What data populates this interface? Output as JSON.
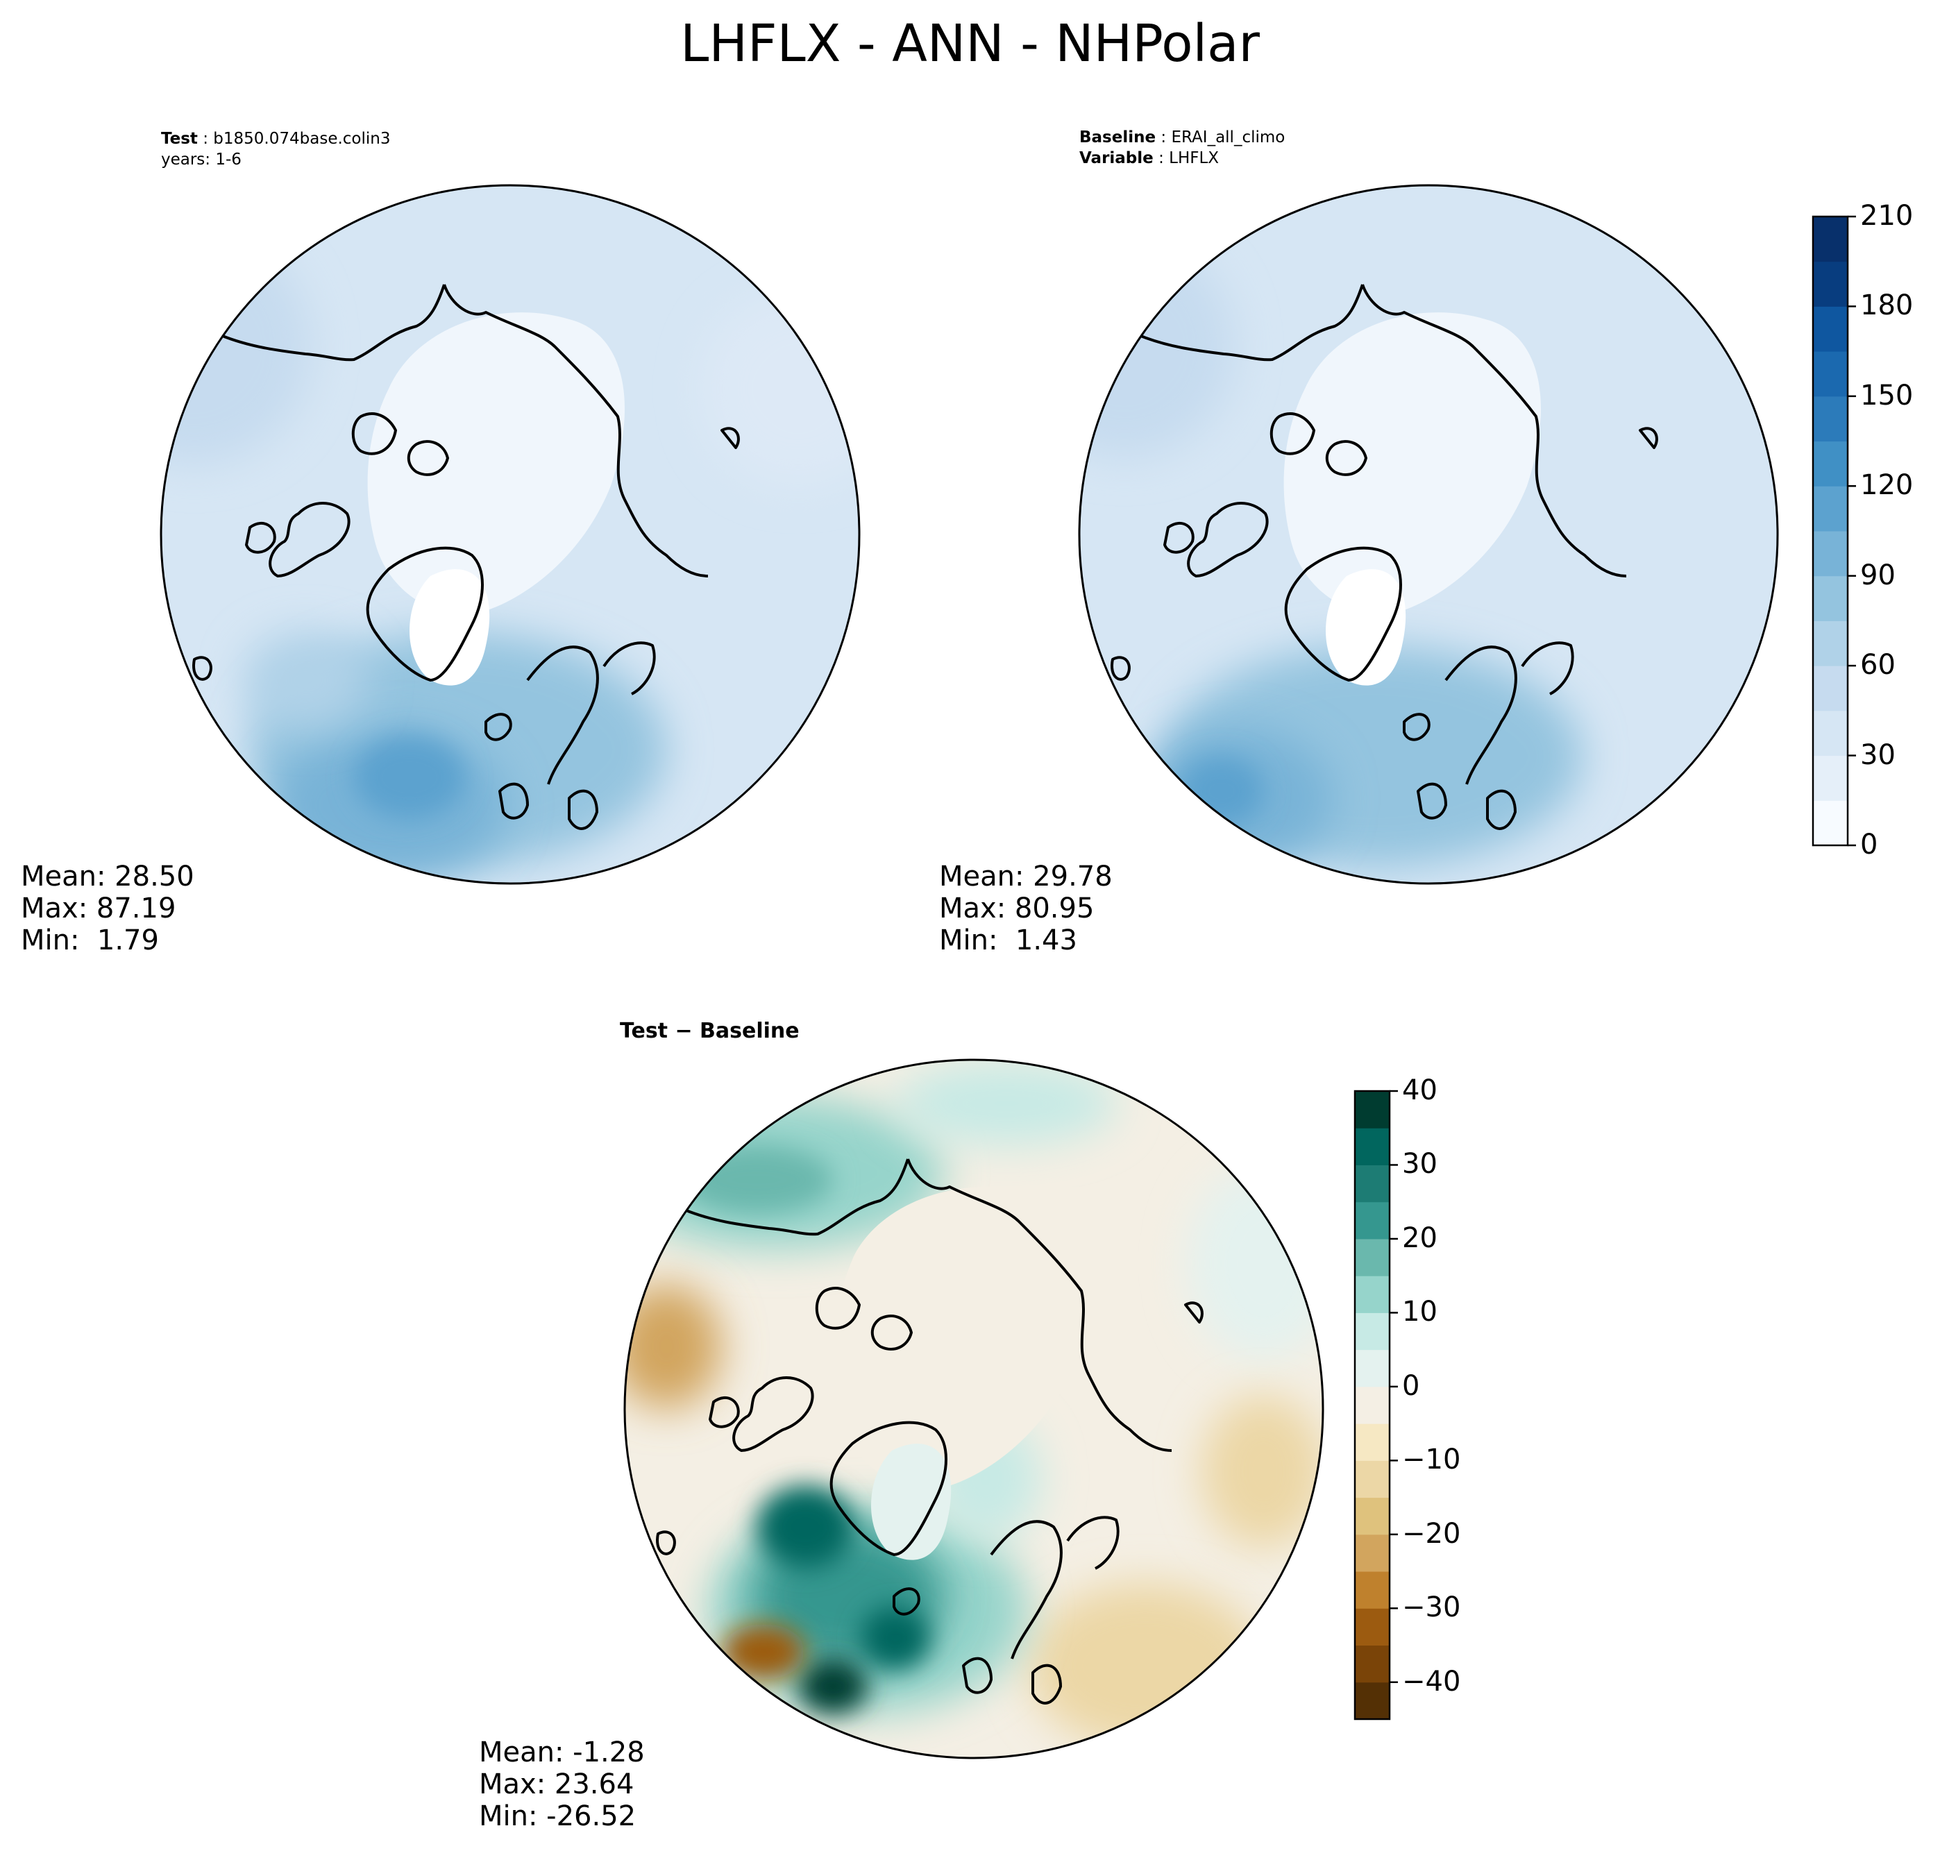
{
  "figure": {
    "title": "LHFLX - ANN - NHPolar"
  },
  "test_panel": {
    "label_key": "Test",
    "label_value": "b1850.074base.colin3",
    "years": "years: 1-6",
    "stats": {
      "mean": "Mean: 28.50",
      "max": "Max: 87.19",
      "min": "Min:  1.79"
    }
  },
  "baseline_panel": {
    "label_key": "Baseline",
    "label_value": "ERAI_all_climo",
    "variable_key": "Variable",
    "variable_value": "LHFLX",
    "stats": {
      "mean": "Mean: 29.78",
      "max": "Max: 80.95",
      "min": "Min:  1.43"
    }
  },
  "diff_panel": {
    "title": "Test − Baseline",
    "stats": {
      "mean": "Mean: -1.28",
      "max": "Max: 23.64",
      "min": "Min: -26.52"
    }
  },
  "colorbar_main": {
    "ticks": [
      "0",
      "30",
      "60",
      "90",
      "120",
      "150",
      "180",
      "210"
    ],
    "range": [
      0,
      210
    ],
    "colors": [
      "#f7fbff",
      "#e5eff9",
      "#d6e6f4",
      "#c6dbef",
      "#b0d2e8",
      "#94c4df",
      "#78b3d7",
      "#5ca2cf",
      "#4090c5",
      "#2c7bba",
      "#1b69af",
      "#0f57a0",
      "#083d7f",
      "#08306b"
    ]
  },
  "colorbar_diff": {
    "ticks": [
      "40",
      "30",
      "20",
      "10",
      "0",
      "−10",
      "−20",
      "−30",
      "−40"
    ],
    "range": [
      -45,
      40
    ],
    "colors": [
      "#543005",
      "#7a4408",
      "#9c5b10",
      "#bf812d",
      "#d2a55e",
      "#dfc27d",
      "#ecd7a6",
      "#f6e8c3",
      "#f4efe4",
      "#e4f2ef",
      "#c7eae5",
      "#96d4cb",
      "#6ab8ad",
      "#35978f",
      "#1d7c74",
      "#01665e",
      "#003c30"
    ]
  },
  "map_colors": {
    "coast": "#000000",
    "ocean_main": "#d6e6f4",
    "ice_main": "#f0f6fc",
    "ocean_diff": "#f4efe4"
  }
}
